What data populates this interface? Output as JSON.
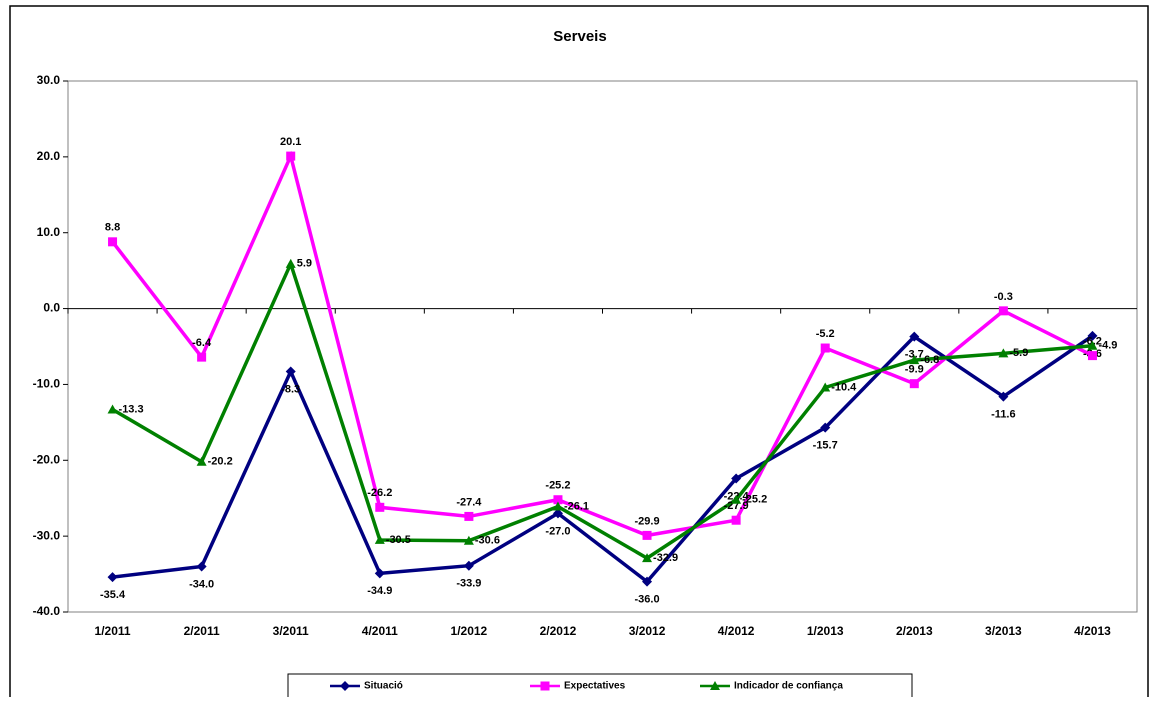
{
  "chart_data": {
    "type": "line",
    "title": "Serveis",
    "categories": [
      "1/2011",
      "2/2011",
      "3/2011",
      "4/2011",
      "1/2012",
      "2/2012",
      "3/2012",
      "4/2012",
      "1/2013",
      "2/2013",
      "3/2013",
      "4/2013"
    ],
    "ylim": [
      -40,
      30
    ],
    "yticks": [
      {
        "value": -40,
        "label": "-40.0"
      },
      {
        "value": -30,
        "label": "-30.0"
      },
      {
        "value": -20,
        "label": "-20.0"
      },
      {
        "value": -10,
        "label": "-10.0"
      },
      {
        "value": 0,
        "label": "0.0"
      },
      {
        "value": 10,
        "label": "10.0"
      },
      {
        "value": 20,
        "label": "20.0"
      },
      {
        "value": 30,
        "label": "30.0"
      }
    ],
    "series": [
      {
        "name": "Situació",
        "color": "#000080",
        "marker": "diamond",
        "values": [
          -35.4,
          -34.0,
          -8.3,
          -34.9,
          -33.9,
          -27.0,
          -36.0,
          -22.4,
          -15.7,
          -3.7,
          -11.6,
          -3.6
        ],
        "value_labels": [
          "-35.4",
          "-34.0",
          "-8.3",
          "-34.9",
          "-33.9",
          "-27.0",
          "-36.0",
          "-22.4",
          "-15.7",
          "-3.7",
          "-11.6",
          "-3.6"
        ]
      },
      {
        "name": "Expectatives",
        "color": "#ff00ff",
        "marker": "square",
        "values": [
          8.8,
          -6.4,
          20.1,
          -26.2,
          -27.4,
          -25.2,
          -29.9,
          -27.9,
          -5.2,
          -9.9,
          -0.3,
          -6.2
        ],
        "value_labels": [
          "8.8",
          "-6.4",
          "20.1",
          "-26.2",
          "-27.4",
          "-25.2",
          "-29.9",
          "-27.9",
          "-5.2",
          "-9.9",
          "-0.3",
          "-6.2"
        ]
      },
      {
        "name": "Indicador de confiança",
        "color": "#008000",
        "marker": "triangle",
        "values": [
          -13.3,
          -20.2,
          5.9,
          -30.5,
          -30.6,
          -26.1,
          -32.9,
          -25.2,
          -10.4,
          -6.8,
          -5.9,
          -4.9
        ],
        "value_labels": [
          "-13.3",
          "-20.2",
          "5.9",
          "-30.5",
          "-30.6",
          "-26.1",
          "-32.9",
          "-25.2",
          "-10.4",
          "-6.8",
          "-5.9",
          "-4.9"
        ]
      }
    ]
  }
}
